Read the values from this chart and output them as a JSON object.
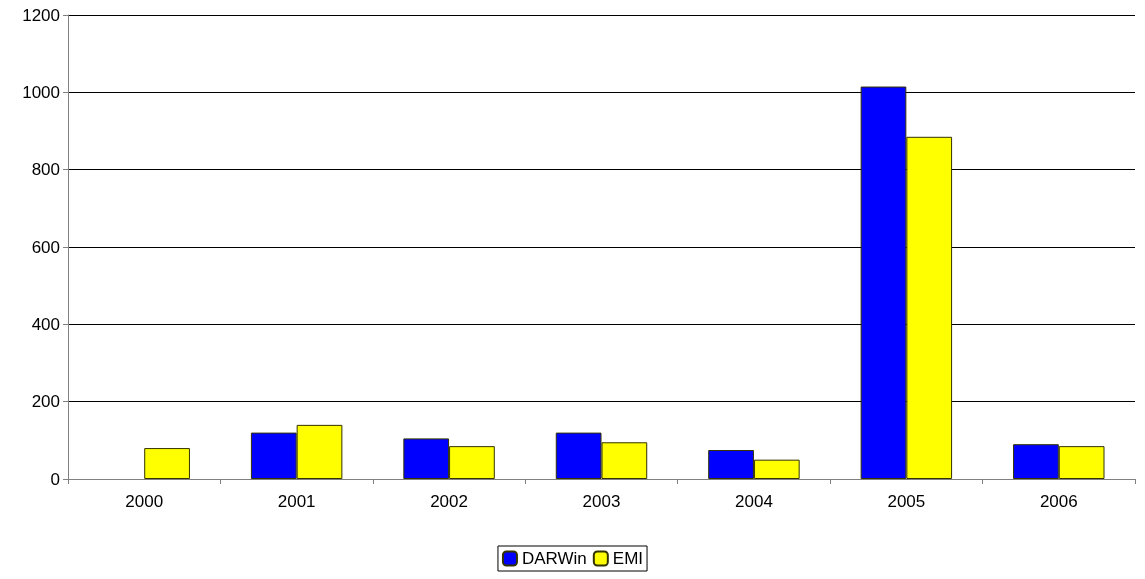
{
  "chart_data": {
    "type": "bar",
    "categories": [
      "2000",
      "2001",
      "2002",
      "2003",
      "2004",
      "2005",
      "2006"
    ],
    "series": [
      {
        "name": "DARWin",
        "color": "#0000ff",
        "values": [
          null,
          120,
          105,
          120,
          75,
          1015,
          90
        ]
      },
      {
        "name": "EMI",
        "color": "#ffff00",
        "values": [
          80,
          140,
          85,
          95,
          50,
          885,
          85
        ]
      }
    ],
    "ylim": [
      0,
      1200
    ],
    "yticks": [
      0,
      200,
      400,
      600,
      800,
      1000,
      1200
    ],
    "grid": "y",
    "legend": "bottom"
  }
}
